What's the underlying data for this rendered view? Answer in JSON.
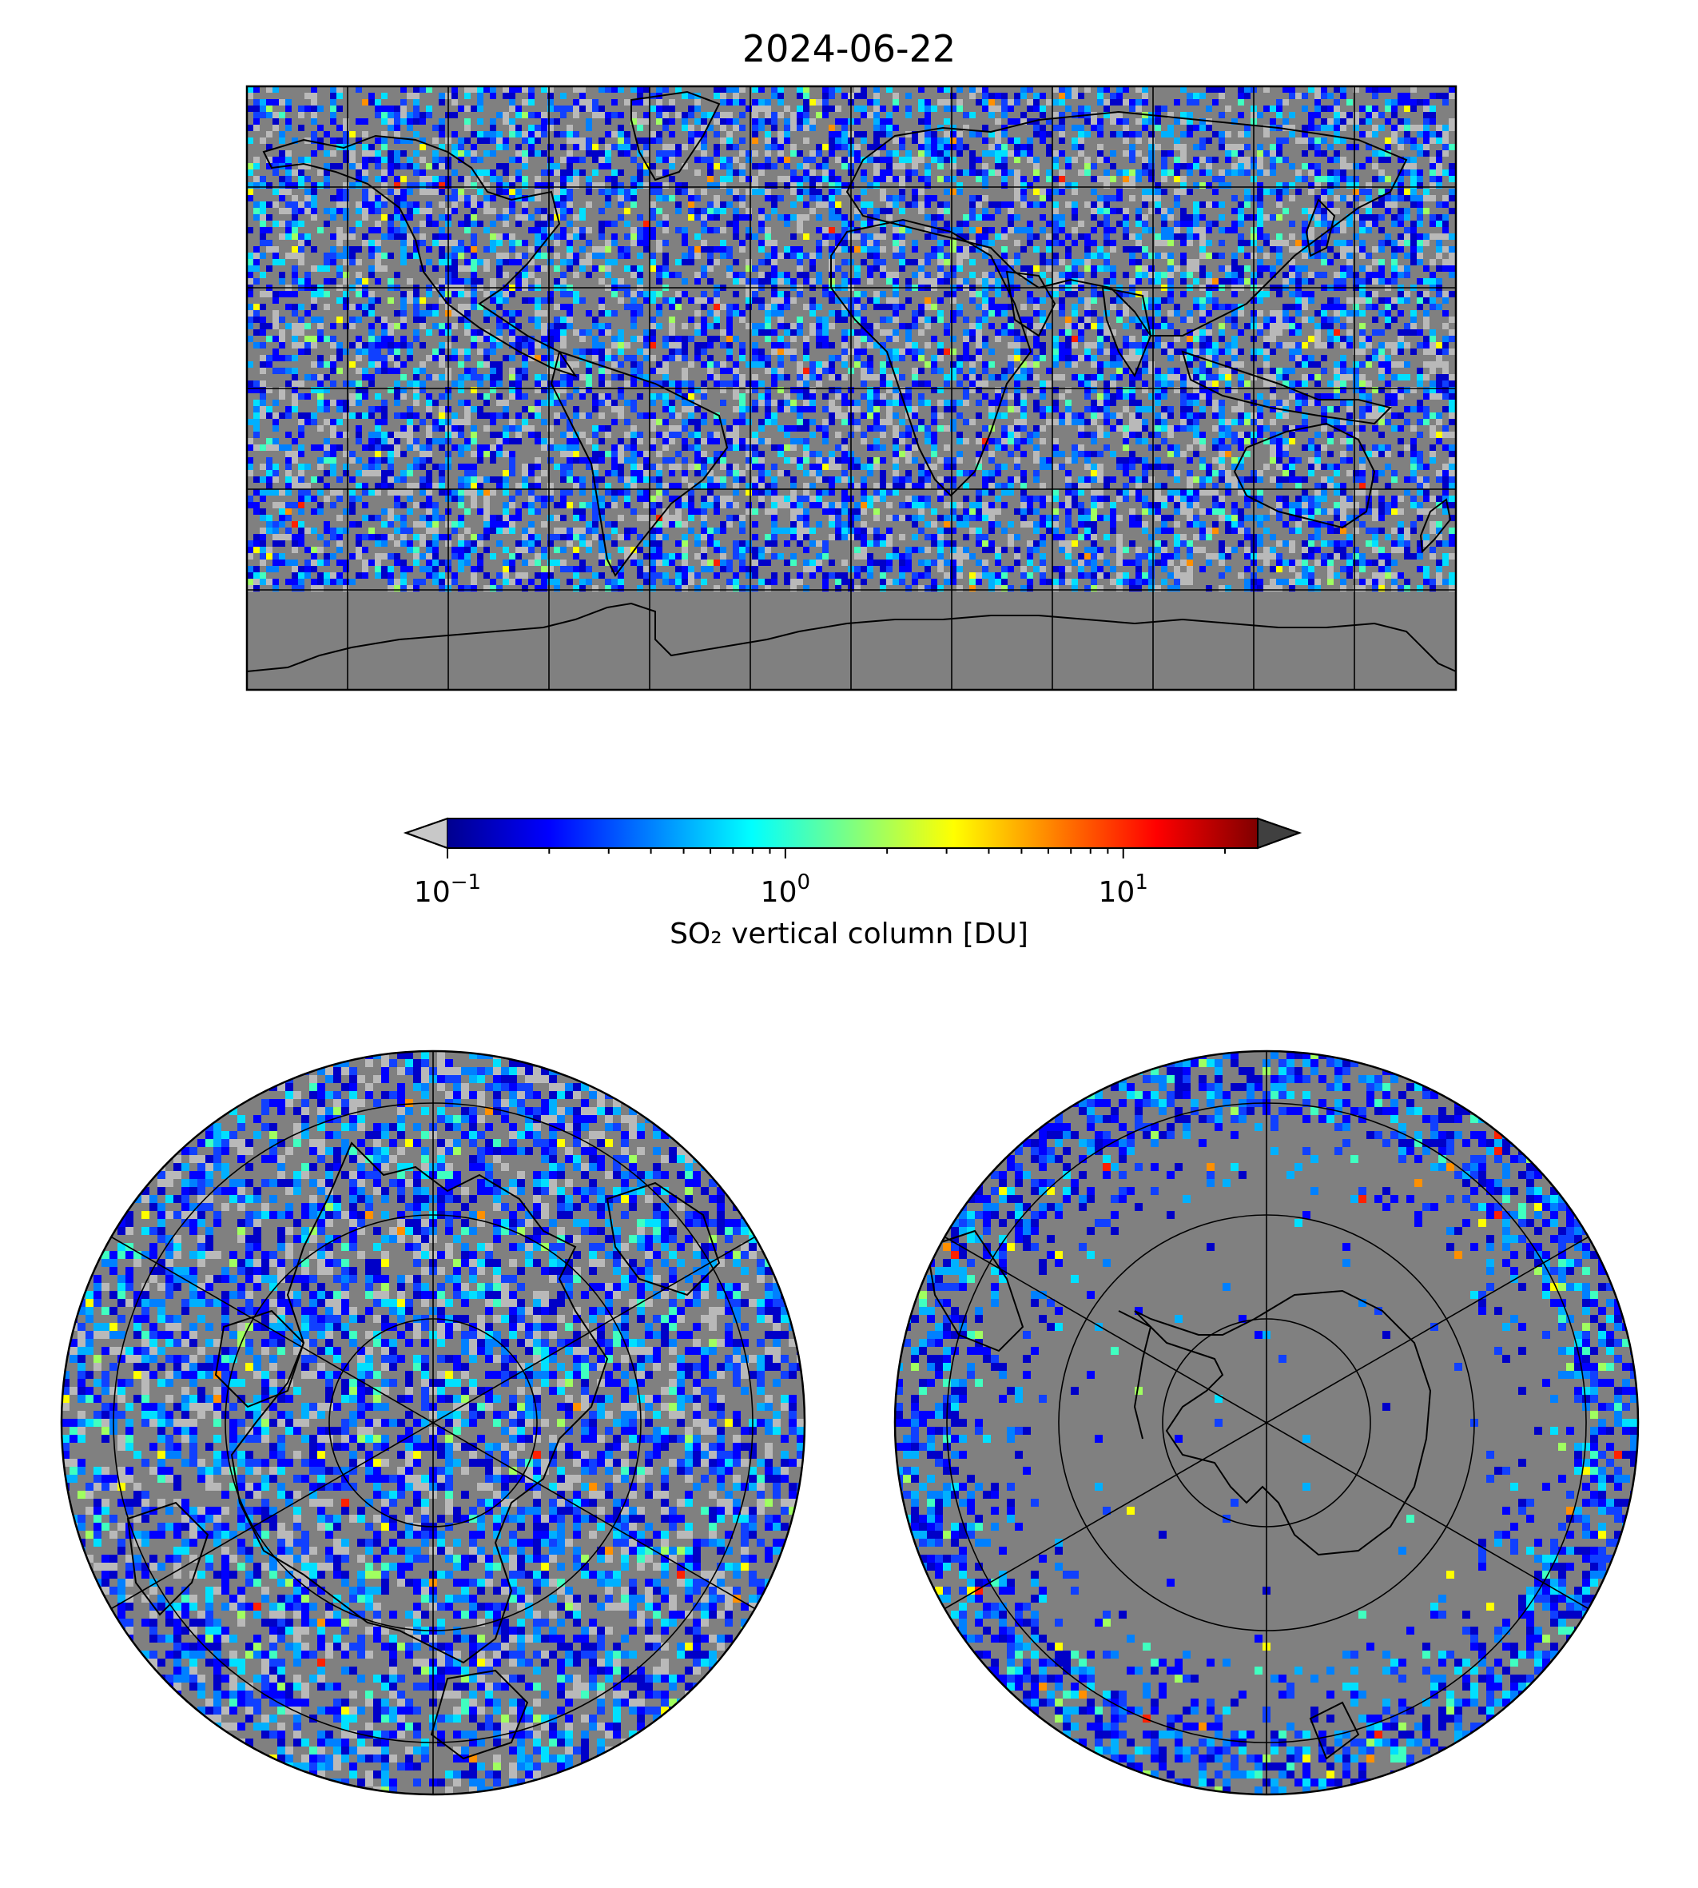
{
  "title": "2024-06-22",
  "colorbar": {
    "label": "SO₂ vertical column [DU]",
    "scale": "log",
    "range": [
      0.1,
      25
    ],
    "extend": "both",
    "colormap": "jet",
    "under_color": "#c8c8c8",
    "over_color": "#404040",
    "ticks": [
      {
        "value": 0.1,
        "base": "10",
        "exp": "−1"
      },
      {
        "value": 1,
        "base": "10",
        "exp": "0"
      },
      {
        "value": 10,
        "base": "10",
        "exp": "1"
      }
    ]
  },
  "maps": [
    {
      "name": "global-map",
      "projection": "plate-carree",
      "gridlines": true
    },
    {
      "name": "north-polar-map",
      "projection": "north-polar-stereographic",
      "gridlines": true
    },
    {
      "name": "south-polar-map",
      "projection": "south-polar-stereographic",
      "gridlines": true
    }
  ],
  "colors": {
    "no_data": "#808080",
    "low_value": "#b9b9b9",
    "coastline": "#000000",
    "gridline": "#000000"
  }
}
